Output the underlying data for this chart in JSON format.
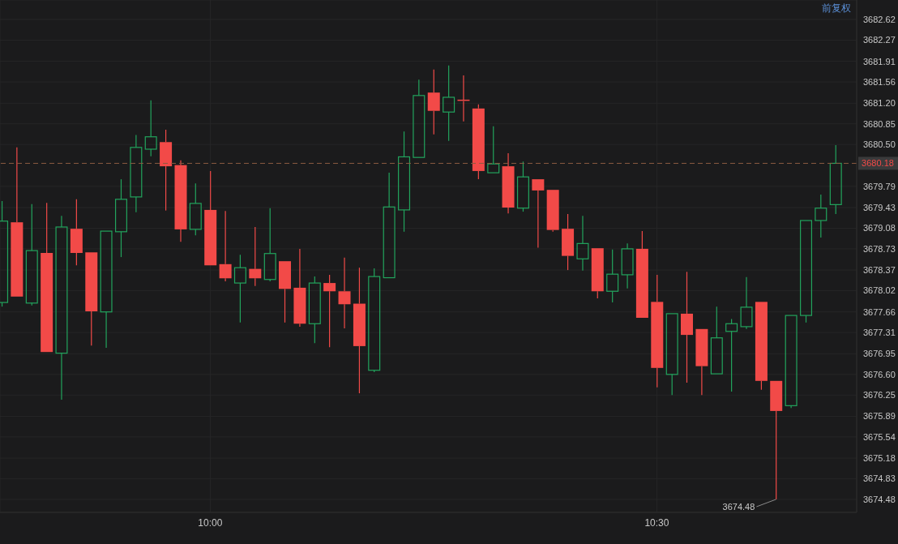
{
  "chart_data": {
    "type": "candlestick",
    "x": [
      9.7667,
      9.7833,
      9.8,
      9.8167,
      9.8333,
      9.85,
      9.8667,
      9.8833,
      9.9,
      9.9167,
      9.9333,
      9.95,
      9.9667,
      9.9833,
      10,
      10.0167,
      10.0333,
      10.05,
      10.0667,
      10.0833,
      10.1,
      10.1167,
      10.1333,
      10.15,
      10.1667,
      10.1833,
      10.2,
      10.2167,
      10.2333,
      10.25,
      10.2667,
      10.2833,
      10.3,
      10.3167,
      10.3333,
      10.35,
      10.3667,
      10.3833,
      10.4,
      10.4167,
      10.4333,
      10.45,
      10.4667,
      10.4833,
      10.5,
      10.5167,
      10.5333,
      10.55,
      10.5667,
      10.5833,
      10.6,
      10.6167,
      10.6333,
      10.65,
      10.6667,
      10.6833,
      10.7
    ],
    "ohlc": [
      [
        3677.82,
        3679.54,
        3677.75,
        3679.2
      ],
      [
        3679.18,
        3680.45,
        3677.9,
        3677.92
      ],
      [
        3677.81,
        3679.49,
        3677.77,
        3678.7
      ],
      [
        3678.66,
        3679.51,
        3676.97,
        3676.98
      ],
      [
        3676.96,
        3679.29,
        3676.17,
        3679.1
      ],
      [
        3679.07,
        3679.57,
        3678.45,
        3678.66
      ],
      [
        3678.67,
        3678.68,
        3677.09,
        3677.67
      ],
      [
        3677.66,
        3679.05,
        3677.05,
        3679.03
      ],
      [
        3679.02,
        3679.91,
        3678.59,
        3679.57
      ],
      [
        3679.61,
        3680.66,
        3679.35,
        3680.45
      ],
      [
        3680.42,
        3681.25,
        3680.3,
        3680.63
      ],
      [
        3680.54,
        3680.75,
        3679.38,
        3680.13
      ],
      [
        3680.15,
        3680.23,
        3678.85,
        3679.06
      ],
      [
        3679.06,
        3679.84,
        3678.96,
        3679.5
      ],
      [
        3679.39,
        3680.05,
        3678.44,
        3678.45
      ],
      [
        3678.47,
        3679.37,
        3678.18,
        3678.23
      ],
      [
        3678.15,
        3678.63,
        3677.48,
        3678.41
      ],
      [
        3678.39,
        3679.1,
        3678.1,
        3678.23
      ],
      [
        3678.21,
        3679.42,
        3678.18,
        3678.65
      ],
      [
        3678.52,
        3678.54,
        3677.48,
        3678.05
      ],
      [
        3678.07,
        3678.73,
        3677.41,
        3677.46
      ],
      [
        3677.46,
        3678.26,
        3677.13,
        3678.15
      ],
      [
        3678.15,
        3678.29,
        3677.06,
        3678.01
      ],
      [
        3678.01,
        3678.58,
        3677.38,
        3677.79
      ],
      [
        3677.8,
        3678.41,
        3676.28,
        3677.08
      ],
      [
        3676.67,
        3678.4,
        3676.64,
        3678.26
      ],
      [
        3678.24,
        3680.02,
        3678.23,
        3679.44
      ],
      [
        3679.39,
        3680.72,
        3679.02,
        3680.29
      ],
      [
        3680.28,
        3681.6,
        3680.27,
        3681.33
      ],
      [
        3681.38,
        3681.77,
        3680.67,
        3681.07
      ],
      [
        3681.05,
        3681.84,
        3680.56,
        3681.3
      ],
      [
        3681.26,
        3681.67,
        3680.89,
        3681.24
      ],
      [
        3681.11,
        3681.18,
        3679.91,
        3680.05
      ],
      [
        3680.02,
        3680.81,
        3680.02,
        3680.17
      ],
      [
        3680.13,
        3680.35,
        3679.33,
        3679.43
      ],
      [
        3679.42,
        3680.21,
        3679.36,
        3679.95
      ],
      [
        3679.91,
        3679.92,
        3678.75,
        3679.72
      ],
      [
        3679.73,
        3679.75,
        3679.02,
        3679.05
      ],
      [
        3679.07,
        3679.32,
        3678.37,
        3678.61
      ],
      [
        3678.56,
        3679.29,
        3678.36,
        3678.82
      ],
      [
        3678.74,
        3678.76,
        3677.89,
        3678.01
      ],
      [
        3678.01,
        3678.72,
        3677.82,
        3678.3
      ],
      [
        3678.29,
        3678.82,
        3678.06,
        3678.73
      ],
      [
        3678.73,
        3679.03,
        3677.55,
        3677.56
      ],
      [
        3677.83,
        3678.29,
        3676.38,
        3676.71
      ],
      [
        3676.6,
        3677.64,
        3676.25,
        3677.63
      ],
      [
        3677.63,
        3678.34,
        3676.46,
        3677.27
      ],
      [
        3677.37,
        3677.38,
        3676.25,
        3676.74
      ],
      [
        3676.61,
        3677.75,
        3676.6,
        3677.22
      ],
      [
        3677.33,
        3677.54,
        3676.31,
        3677.46
      ],
      [
        3677.41,
        3678.25,
        3677.37,
        3677.74
      ],
      [
        3677.83,
        3677.84,
        3676.34,
        3676.49
      ],
      [
        3676.49,
        3676.5,
        3674.48,
        3675.98
      ],
      [
        3676.07,
        3677.62,
        3676.03,
        3677.6
      ],
      [
        3677.6,
        3679.23,
        3677.48,
        3679.21
      ],
      [
        3679.21,
        3679.65,
        3678.92,
        3679.42
      ],
      [
        3679.48,
        3680.49,
        3679.32,
        3680.18
      ]
    ],
    "colors": [
      "#22a45d",
      "#f24a48",
      "#22a45d",
      "#f24a48",
      "#22a45d",
      "#f24a48",
      "#f24a48",
      "#22a45d",
      "#22a45d",
      "#22a45d",
      "#22a45d",
      "#f24a48",
      "#f24a48",
      "#22a45d",
      "#f24a48",
      "#f24a48",
      "#22a45d",
      "#f24a48",
      "#22a45d",
      "#f24a48",
      "#f24a48",
      "#22a45d",
      "#f24a48",
      "#f24a48",
      "#f24a48",
      "#22a45d",
      "#22a45d",
      "#22a45d",
      "#22a45d",
      "#f24a48",
      "#22a45d",
      "#f24a48",
      "#f24a48",
      "#22a45d",
      "#f24a48",
      "#22a45d",
      "#f24a48",
      "#f24a48",
      "#f24a48",
      "#22a45d",
      "#f24a48",
      "#22a45d",
      "#22a45d",
      "#f24a48",
      "#f24a48",
      "#22a45d",
      "#f24a48",
      "#f24a48",
      "#22a45d",
      "#22a45d",
      "#22a45d",
      "#f24a48",
      "#f24a48",
      "#22a45d",
      "#22a45d",
      "#22a45d",
      "#22a45d"
    ],
    "xlim": [
      9.7647,
      10.7237
    ],
    "xticks": [
      {
        "value": 10,
        "label": "10:00"
      },
      {
        "value": 10.5,
        "label": "10:30"
      }
    ],
    "ylim": [
      3674.26,
      3682.95
    ],
    "yticks": [
      {
        "value": 3674.48,
        "label": "3674.48"
      },
      {
        "value": 3674.83,
        "label": "3674.83"
      },
      {
        "value": 3675.18,
        "label": "3675.18"
      },
      {
        "value": 3675.54,
        "label": "3675.54"
      },
      {
        "value": 3675.89,
        "label": "3675.89"
      },
      {
        "value": 3676.25,
        "label": "3676.25"
      },
      {
        "value": 3676.6,
        "label": "3676.60"
      },
      {
        "value": 3676.95,
        "label": "3676.95"
      },
      {
        "value": 3677.31,
        "label": "3677.31"
      },
      {
        "value": 3677.66,
        "label": "3677.66"
      },
      {
        "value": 3678.02,
        "label": "3678.02"
      },
      {
        "value": 3678.37,
        "label": "3678.37"
      },
      {
        "value": 3678.73,
        "label": "3678.73"
      },
      {
        "value": 3679.08,
        "label": "3679.08"
      },
      {
        "value": 3679.43,
        "label": "3679.43"
      },
      {
        "value": 3679.79,
        "label": "3679.79"
      },
      {
        "value": 3680.5,
        "label": "3680.50"
      },
      {
        "value": 3680.85,
        "label": "3680.85"
      },
      {
        "value": 3681.2,
        "label": "3681.20"
      },
      {
        "value": 3681.56,
        "label": "3681.56"
      },
      {
        "value": 3681.91,
        "label": "3681.91"
      },
      {
        "value": 3682.27,
        "label": "3682.27"
      },
      {
        "value": 3682.62,
        "label": "3682.62"
      }
    ],
    "grid": true,
    "ref_lines": [
      {
        "axis": "y",
        "value": 3680.18,
        "label": "3680.18",
        "color": "#8a5a40",
        "line_style": "dashed"
      }
    ],
    "annotations": [
      "前复权",
      {
        "text": "3674.48",
        "x": 10.6333,
        "y": 3674.48
      }
    ]
  }
}
